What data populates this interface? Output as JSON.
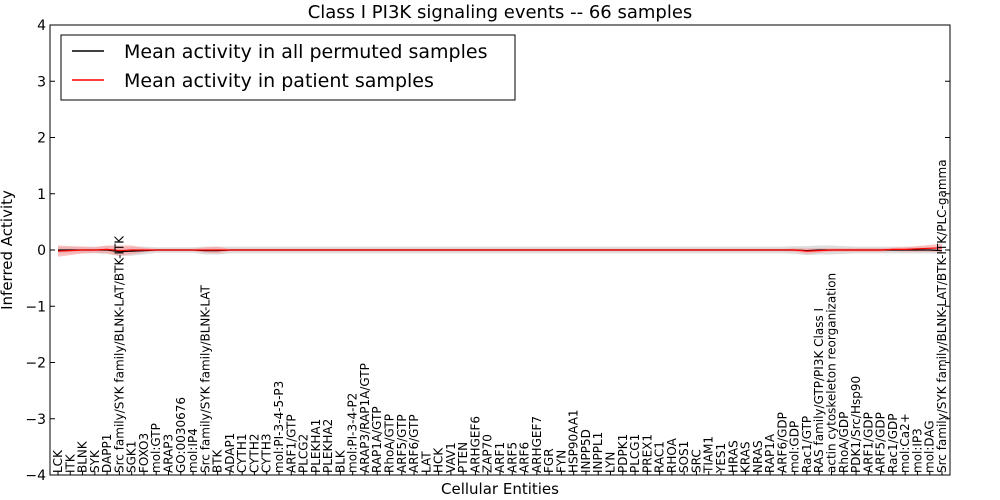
{
  "chart_data": {
    "type": "line",
    "title": "Class I PI3K signaling events -- 66 samples",
    "xlabel": "Cellular Entities",
    "ylabel": "Inferred Activity",
    "ylim": [
      -4,
      4
    ],
    "yticks": [
      "4",
      "3",
      "2",
      "1",
      "0",
      "−1",
      "−2",
      "−3",
      "−4"
    ],
    "grid": false,
    "legend_position": "top-left",
    "categories": [
      "LCK",
      "ITK",
      "BLNK",
      "SYK",
      "DAPP1",
      "Src family/SYK family/BLNK-LAT/BTK-ITK",
      "SGK1",
      "FOXO3",
      "mol:GTP",
      "ARAP3",
      "GO:0030676",
      "mol:IP4",
      "Src family/SYK family/BLNK-LAT",
      "BTK",
      "ADAP1",
      "CYTH1",
      "CYTH2",
      "CYTH3",
      "mol:PI-3-4-5-P3",
      "ARF1/GTP",
      "PLCG2",
      "PLEKHA1",
      "PLEKHA2",
      "BLK",
      "mol:PI-3-4-P2",
      "ARAP3/RAP1A/GTP",
      "RAP1A/GTP",
      "RhoA/GTP",
      "ARF5/GTP",
      "ARF6/GTP",
      "LAT",
      "HCK",
      "VAV1",
      "PTEN",
      "ARHGEF6",
      "ZAP70",
      "ARF1",
      "ARF5",
      "ARF6",
      "ARHGEF7",
      "FGR",
      "FYN",
      "HSP90AA1",
      "INPP5D",
      "INPPL1",
      "LYN",
      "PDPK1",
      "PLCG1",
      "PREX1",
      "RAC1",
      "RHOA",
      "SOS1",
      "SRC",
      "TIAM1",
      "YES1",
      "HRAS",
      "KRAS",
      "NRAS",
      "RAP1A",
      "ARF6/GDP",
      "mol:GDP",
      "Rac1/GTP",
      "RAS family/GTP/PI3K Class I",
      "actin cytoskeleton reorganization",
      "RhoA/GDP",
      "PDK1/Src/Hsp90",
      "ARF1/GDP",
      "ARF5/GDP",
      "Rac1/GDP",
      "mol:Ca2+",
      "mol:IP3",
      "mol:DAG",
      "Src family/SYK family/BLNK-LAT/BTK-ITK/PLC-gamma"
    ],
    "series": [
      {
        "name": "Mean activity in all permuted samples",
        "color": "#000000",
        "values": [
          0.0,
          0.0,
          0.0,
          0.0,
          0.0,
          -0.03,
          -0.02,
          -0.01,
          0.0,
          0.0,
          0.0,
          0.0,
          -0.01,
          -0.01,
          0.0,
          0.0,
          0.0,
          0.0,
          0.0,
          0.0,
          0.0,
          0.0,
          0.0,
          0.0,
          0.0,
          0.0,
          0.0,
          0.0,
          0.0,
          0.0,
          0.0,
          0.0,
          0.0,
          0.0,
          0.0,
          0.0,
          0.0,
          0.0,
          0.0,
          0.0,
          0.0,
          0.0,
          0.0,
          0.0,
          0.0,
          0.0,
          0.0,
          0.0,
          0.0,
          0.0,
          0.0,
          0.0,
          0.0,
          0.0,
          0.0,
          0.0,
          0.0,
          0.0,
          0.0,
          0.0,
          0.0,
          -0.01,
          0.0,
          0.0,
          0.0,
          0.0,
          0.0,
          0.0,
          0.0,
          0.0,
          0.0,
          0.0,
          -0.01
        ]
      },
      {
        "name": "Mean activity in patient samples",
        "color": "#ff0000",
        "values": [
          -0.02,
          -0.01,
          0.0,
          0.0,
          0.01,
          -0.01,
          0.0,
          0.0,
          0.0,
          0.0,
          0.0,
          0.0,
          0.0,
          0.0,
          0.0,
          0.0,
          0.0,
          0.0,
          0.0,
          0.0,
          0.0,
          0.0,
          0.0,
          0.0,
          0.0,
          0.0,
          0.0,
          0.0,
          0.0,
          0.0,
          0.0,
          0.0,
          0.0,
          0.0,
          0.0,
          0.0,
          0.0,
          0.0,
          0.0,
          0.0,
          0.0,
          0.0,
          0.0,
          0.0,
          0.0,
          0.0,
          0.0,
          0.0,
          0.0,
          0.0,
          0.0,
          0.0,
          0.0,
          0.0,
          0.0,
          0.0,
          0.0,
          0.0,
          0.0,
          0.0,
          0.0,
          -0.02,
          -0.01,
          0.0,
          0.0,
          0.0,
          0.0,
          0.0,
          0.01,
          0.01,
          0.02,
          0.03,
          0.04
        ]
      }
    ],
    "bands": [
      {
        "for": "Mean activity in all permuted samples",
        "color": "#bbbbbb",
        "halfwidth": [
          0.06,
          0.06,
          0.06,
          0.06,
          0.07,
          0.08,
          0.08,
          0.07,
          0.05,
          0.05,
          0.05,
          0.05,
          0.07,
          0.07,
          0.06,
          0.06,
          0.06,
          0.06,
          0.06,
          0.06,
          0.06,
          0.06,
          0.06,
          0.06,
          0.06,
          0.06,
          0.06,
          0.06,
          0.06,
          0.06,
          0.06,
          0.06,
          0.06,
          0.06,
          0.06,
          0.06,
          0.06,
          0.06,
          0.06,
          0.06,
          0.06,
          0.06,
          0.06,
          0.06,
          0.06,
          0.06,
          0.06,
          0.06,
          0.06,
          0.06,
          0.06,
          0.06,
          0.06,
          0.06,
          0.06,
          0.06,
          0.06,
          0.06,
          0.06,
          0.06,
          0.07,
          0.08,
          0.08,
          0.08,
          0.07,
          0.06,
          0.06,
          0.06,
          0.06,
          0.06,
          0.06,
          0.06,
          0.06
        ]
      },
      {
        "for": "Mean activity in patient samples",
        "color": "#ff9999",
        "halfwidth": [
          0.1,
          0.08,
          0.06,
          0.05,
          0.07,
          0.09,
          0.08,
          0.04,
          0.02,
          0.02,
          0.02,
          0.02,
          0.05,
          0.06,
          0.02,
          0.02,
          0.02,
          0.02,
          0.02,
          0.02,
          0.02,
          0.02,
          0.02,
          0.02,
          0.02,
          0.02,
          0.02,
          0.02,
          0.02,
          0.02,
          0.02,
          0.02,
          0.02,
          0.02,
          0.02,
          0.02,
          0.02,
          0.02,
          0.02,
          0.02,
          0.02,
          0.02,
          0.02,
          0.02,
          0.02,
          0.02,
          0.02,
          0.02,
          0.02,
          0.02,
          0.02,
          0.02,
          0.02,
          0.02,
          0.02,
          0.02,
          0.02,
          0.02,
          0.02,
          0.02,
          0.03,
          0.05,
          0.04,
          0.03,
          0.03,
          0.03,
          0.03,
          0.03,
          0.03,
          0.04,
          0.05,
          0.06,
          0.07
        ]
      }
    ]
  }
}
